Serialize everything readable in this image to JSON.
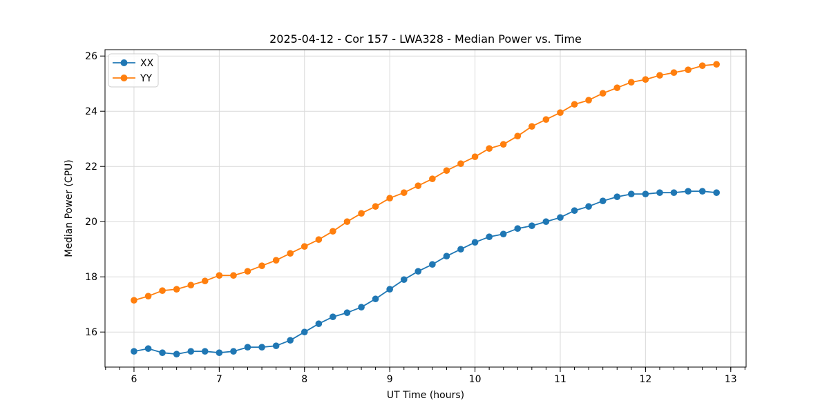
{
  "chart_data": {
    "type": "line",
    "title": "2025-04-12 - Cor 157 - LWA328 - Median Power vs. Time",
    "xlabel": "UT Time (hours)",
    "ylabel": "Median Power (CPU)",
    "xlim": [
      5.66,
      13.18
    ],
    "ylim": [
      14.73,
      26.23
    ],
    "xticks": [
      6,
      7,
      8,
      9,
      10,
      11,
      12,
      13
    ],
    "yticks": [
      16,
      18,
      20,
      22,
      24,
      26
    ],
    "x_minor_step": 0.166667,
    "grid": true,
    "legend_position": "upper left",
    "x": [
      6.0,
      6.167,
      6.333,
      6.5,
      6.667,
      6.833,
      7.0,
      7.167,
      7.333,
      7.5,
      7.667,
      7.833,
      8.0,
      8.167,
      8.333,
      8.5,
      8.667,
      8.833,
      9.0,
      9.167,
      9.333,
      9.5,
      9.667,
      9.833,
      10.0,
      10.167,
      10.333,
      10.5,
      10.667,
      10.833,
      11.0,
      11.167,
      11.333,
      11.5,
      11.667,
      11.833,
      12.0,
      12.167,
      12.333,
      12.5,
      12.667,
      12.833
    ],
    "series": [
      {
        "name": "XX",
        "color": "#1f77b4",
        "values": [
          15.3,
          15.4,
          15.25,
          15.2,
          15.3,
          15.3,
          15.25,
          15.3,
          15.45,
          15.45,
          15.5,
          15.7,
          16.0,
          16.3,
          16.55,
          16.7,
          16.9,
          17.2,
          17.55,
          17.9,
          18.2,
          18.45,
          18.75,
          19.0,
          19.25,
          19.45,
          19.55,
          19.75,
          19.85,
          20.0,
          20.15,
          20.4,
          20.55,
          20.75,
          20.9,
          21.0,
          21.0,
          21.05,
          21.05,
          21.1,
          21.1,
          21.05
        ]
      },
      {
        "name": "YY",
        "color": "#ff7f0e",
        "values": [
          17.15,
          17.3,
          17.5,
          17.55,
          17.7,
          17.85,
          18.05,
          18.05,
          18.2,
          18.4,
          18.6,
          18.85,
          19.1,
          19.35,
          19.65,
          20.0,
          20.3,
          20.55,
          20.85,
          21.05,
          21.3,
          21.55,
          21.85,
          22.1,
          22.35,
          22.65,
          22.8,
          23.1,
          23.45,
          23.7,
          23.95,
          24.25,
          24.4,
          24.65,
          24.85,
          25.05,
          25.15,
          25.3,
          25.4,
          25.5,
          25.65,
          25.7
        ]
      }
    ]
  }
}
